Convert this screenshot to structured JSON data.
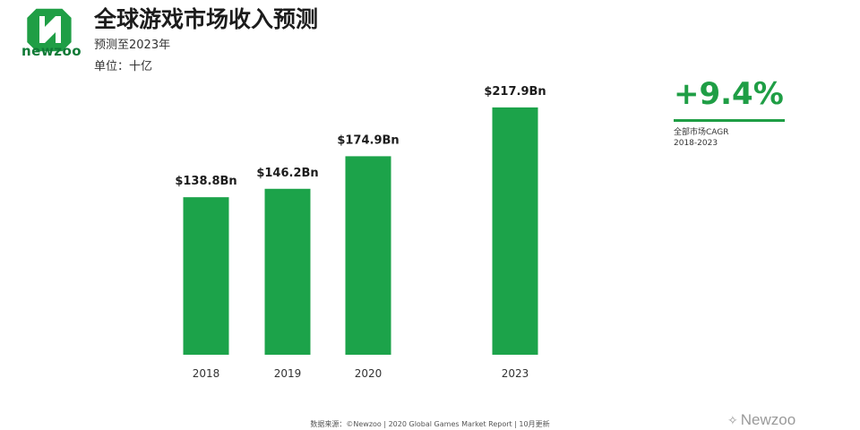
{
  "header": {
    "brand": "newzoo",
    "title": "全球游戏市场收入预测",
    "subtitle": "预测至2023年",
    "unit": "单位：十亿"
  },
  "colors": {
    "bar": "#1ca34a",
    "accent": "#1f9e45"
  },
  "cagr": {
    "value": "+9.4%",
    "label_line1": "全部市场CAGR",
    "label_line2": "2018-2023"
  },
  "footer": {
    "source": "数据来源：©Newzoo | 2020 Global Games Market Report | 10月更新",
    "watermark": "Newzoo"
  },
  "chart_data": {
    "type": "bar",
    "categories": [
      "2018",
      "2019",
      "2020",
      "2023"
    ],
    "values": [
      138.8,
      146.2,
      174.9,
      217.9
    ],
    "data_labels": [
      "$138.8Bn",
      "$146.2Bn",
      "$174.9Bn",
      "$217.9Bn"
    ],
    "grid": false
  }
}
